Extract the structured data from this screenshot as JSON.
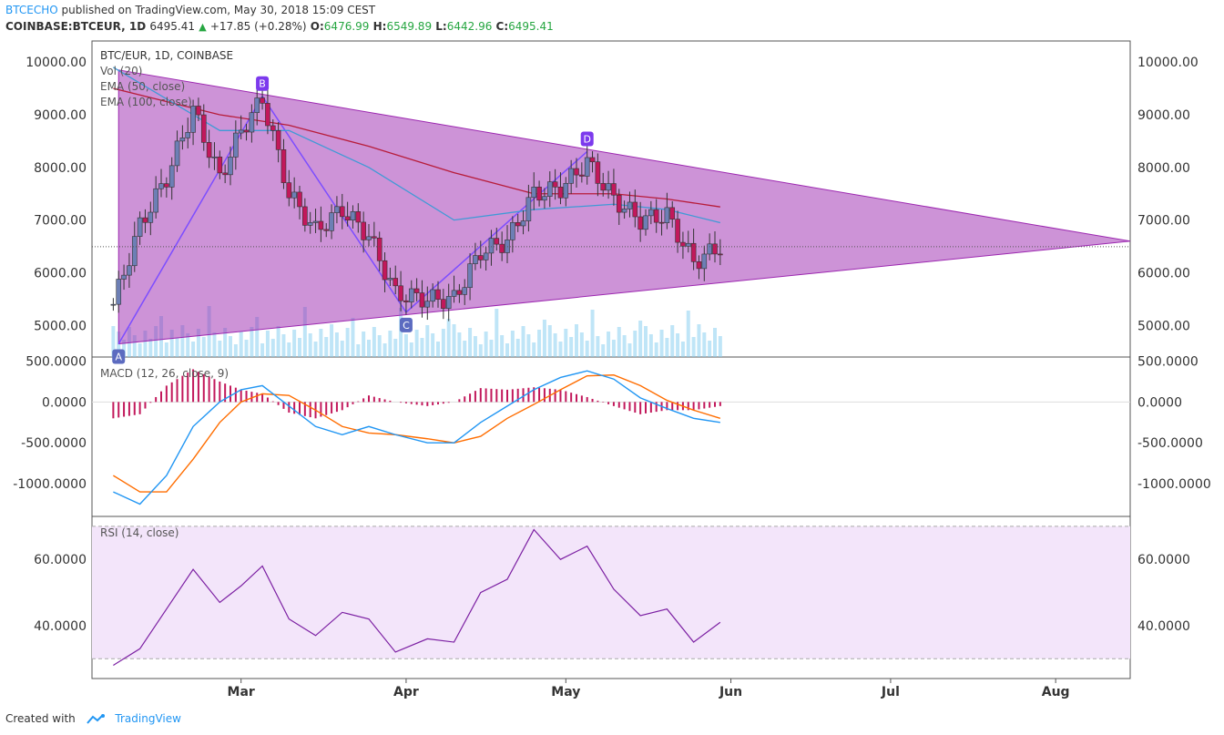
{
  "header": {
    "publisher": "BTCECHO",
    "published_text": "published on TradingView.com, May 30, 2018 15:09 CEST",
    "symbol": "COINBASE:BTCEUR, 1D",
    "last": "6495.41",
    "change": "+17.85 (+0.28%)",
    "o_label": "O:",
    "o_val": "6476.99",
    "h_label": "H:",
    "h_val": "6549.89",
    "l_label": "L:",
    "l_val": "6442.96",
    "c_label": "C:",
    "c_val": "6495.41"
  },
  "legend": {
    "main": "BTC/EUR, 1D, COINBASE",
    "vol": "Vol (20)",
    "ema50": "EMA (50, close)",
    "ema100": "EMA (100, close)",
    "macd": "MACD (12, 26, close, 9)",
    "rsi": "RSI (14, close)"
  },
  "pattern_labels": [
    "A",
    "B",
    "C",
    "D"
  ],
  "footer": {
    "created": "Created with",
    "brand": "TradingView"
  },
  "colors": {
    "up": "#6d7fb5",
    "down": "#c2185b",
    "triangle": "#9c27b0",
    "ema50": "#3f9ad6",
    "ema100": "#b71c3a",
    "macd": "#2196f3",
    "signal": "#ff6d00",
    "rsi": "#7b1fa2",
    "vol": "#8ad0f0"
  },
  "chart_data": [
    {
      "type": "candlestick",
      "title": "BTC/EUR, 1D, COINBASE",
      "x_ticks": [
        "Mar",
        "Apr",
        "May",
        "Jun",
        "Jul",
        "Aug"
      ],
      "y_ticks": [
        "10000.00",
        "9000.00",
        "8000.00",
        "7000.00",
        "6000.00",
        "5000.00"
      ],
      "ylim": [
        4400,
        10400
      ],
      "close_approx": [
        [
          "2018-02-05",
          5400
        ],
        [
          "2018-02-10",
          6900
        ],
        [
          "2018-02-15",
          7800
        ],
        [
          "2018-02-20",
          9100
        ],
        [
          "2018-02-25",
          7800
        ],
        [
          "2018-03-01",
          8700
        ],
        [
          "2018-03-05",
          9300
        ],
        [
          "2018-03-10",
          7500
        ],
        [
          "2018-03-15",
          6800
        ],
        [
          "2018-03-20",
          7200
        ],
        [
          "2018-03-25",
          6700
        ],
        [
          "2018-03-30",
          5600
        ],
        [
          "2018-04-05",
          5500
        ],
        [
          "2018-04-10",
          5500
        ],
        [
          "2018-04-15",
          6400
        ],
        [
          "2018-04-20",
          6600
        ],
        [
          "2018-04-25",
          7500
        ],
        [
          "2018-04-30",
          7600
        ],
        [
          "2018-05-05",
          8100
        ],
        [
          "2018-05-10",
          7400
        ],
        [
          "2018-05-15",
          7000
        ],
        [
          "2018-05-20",
          7100
        ],
        [
          "2018-05-25",
          6200
        ],
        [
          "2018-05-30",
          6495
        ]
      ],
      "ema50_approx": [
        [
          "2018-02-05",
          9900
        ],
        [
          "2018-02-25",
          8700
        ],
        [
          "2018-03-10",
          8700
        ],
        [
          "2018-03-25",
          8000
        ],
        [
          "2018-04-10",
          7000
        ],
        [
          "2018-04-25",
          7200
        ],
        [
          "2018-05-10",
          7300
        ],
        [
          "2018-05-20",
          7200
        ],
        [
          "2018-05-30",
          6950
        ]
      ],
      "ema100_approx": [
        [
          "2018-02-05",
          9500
        ],
        [
          "2018-02-25",
          9000
        ],
        [
          "2018-03-10",
          8800
        ],
        [
          "2018-03-25",
          8400
        ],
        [
          "2018-04-10",
          7900
        ],
        [
          "2018-04-25",
          7500
        ],
        [
          "2018-05-10",
          7500
        ],
        [
          "2018-05-20",
          7400
        ],
        [
          "2018-05-30",
          7250
        ]
      ],
      "pattern_points": [
        {
          "label": "A",
          "date": "2018-02-06",
          "price": 4650
        },
        {
          "label": "B",
          "date": "2018-03-05",
          "price": 9350
        },
        {
          "label": "C",
          "date": "2018-04-01",
          "price": 5250
        },
        {
          "label": "D",
          "date": "2018-05-05",
          "price": 8300
        }
      ]
    },
    {
      "type": "line",
      "title": "MACD (12, 26, close, 9)",
      "y_ticks": [
        "500.0000",
        "0.0000",
        "-500.0000",
        "-1000.0000"
      ],
      "ylim": [
        -1400,
        550
      ],
      "series": [
        {
          "name": "MACD",
          "points": [
            [
              "2018-02-05",
              -1100
            ],
            [
              "2018-02-10",
              -1250
            ],
            [
              "2018-02-15",
              -900
            ],
            [
              "2018-02-20",
              -300
            ],
            [
              "2018-02-25",
              0
            ],
            [
              "2018-03-01",
              150
            ],
            [
              "2018-03-05",
              200
            ],
            [
              "2018-03-10",
              -50
            ],
            [
              "2018-03-15",
              -300
            ],
            [
              "2018-03-20",
              -400
            ],
            [
              "2018-03-25",
              -300
            ],
            [
              "2018-03-30",
              -400
            ],
            [
              "2018-04-05",
              -500
            ],
            [
              "2018-04-10",
              -500
            ],
            [
              "2018-04-15",
              -250
            ],
            [
              "2018-04-20",
              -50
            ],
            [
              "2018-04-25",
              150
            ],
            [
              "2018-04-30",
              300
            ],
            [
              "2018-05-05",
              380
            ],
            [
              "2018-05-10",
              280
            ],
            [
              "2018-05-15",
              50
            ],
            [
              "2018-05-20",
              -80
            ],
            [
              "2018-05-25",
              -200
            ],
            [
              "2018-05-30",
              -250
            ]
          ]
        },
        {
          "name": "Signal",
          "points": [
            [
              "2018-02-05",
              -900
            ],
            [
              "2018-02-10",
              -1100
            ],
            [
              "2018-02-15",
              -1100
            ],
            [
              "2018-02-20",
              -700
            ],
            [
              "2018-02-25",
              -250
            ],
            [
              "2018-03-01",
              0
            ],
            [
              "2018-03-05",
              100
            ],
            [
              "2018-03-10",
              80
            ],
            [
              "2018-03-15",
              -100
            ],
            [
              "2018-03-20",
              -300
            ],
            [
              "2018-03-25",
              -380
            ],
            [
              "2018-03-30",
              -400
            ],
            [
              "2018-04-05",
              -450
            ],
            [
              "2018-04-10",
              -500
            ],
            [
              "2018-04-15",
              -420
            ],
            [
              "2018-04-20",
              -200
            ],
            [
              "2018-04-25",
              -30
            ],
            [
              "2018-04-30",
              150
            ],
            [
              "2018-05-05",
              320
            ],
            [
              "2018-05-10",
              330
            ],
            [
              "2018-05-15",
              200
            ],
            [
              "2018-05-20",
              20
            ],
            [
              "2018-05-25",
              -100
            ],
            [
              "2018-05-30",
              -200
            ]
          ]
        }
      ]
    },
    {
      "type": "line",
      "title": "RSI (14, close)",
      "y_ticks": [
        "60.0000",
        "40.0000"
      ],
      "ylim": [
        24,
        73
      ],
      "series": [
        {
          "name": "RSI",
          "points": [
            [
              "2018-02-05",
              28
            ],
            [
              "2018-02-10",
              33
            ],
            [
              "2018-02-15",
              45
            ],
            [
              "2018-02-20",
              57
            ],
            [
              "2018-02-25",
              47
            ],
            [
              "2018-03-01",
              52
            ],
            [
              "2018-03-05",
              58
            ],
            [
              "2018-03-10",
              42
            ],
            [
              "2018-03-15",
              37
            ],
            [
              "2018-03-20",
              44
            ],
            [
              "2018-03-25",
              42
            ],
            [
              "2018-03-30",
              32
            ],
            [
              "2018-04-05",
              36
            ],
            [
              "2018-04-10",
              35
            ],
            [
              "2018-04-15",
              50
            ],
            [
              "2018-04-20",
              54
            ],
            [
              "2018-04-25",
              69
            ],
            [
              "2018-04-30",
              60
            ],
            [
              "2018-05-05",
              64
            ],
            [
              "2018-05-10",
              51
            ],
            [
              "2018-05-15",
              43
            ],
            [
              "2018-05-20",
              45
            ],
            [
              "2018-05-25",
              35
            ],
            [
              "2018-05-30",
              41
            ]
          ]
        }
      ]
    }
  ]
}
